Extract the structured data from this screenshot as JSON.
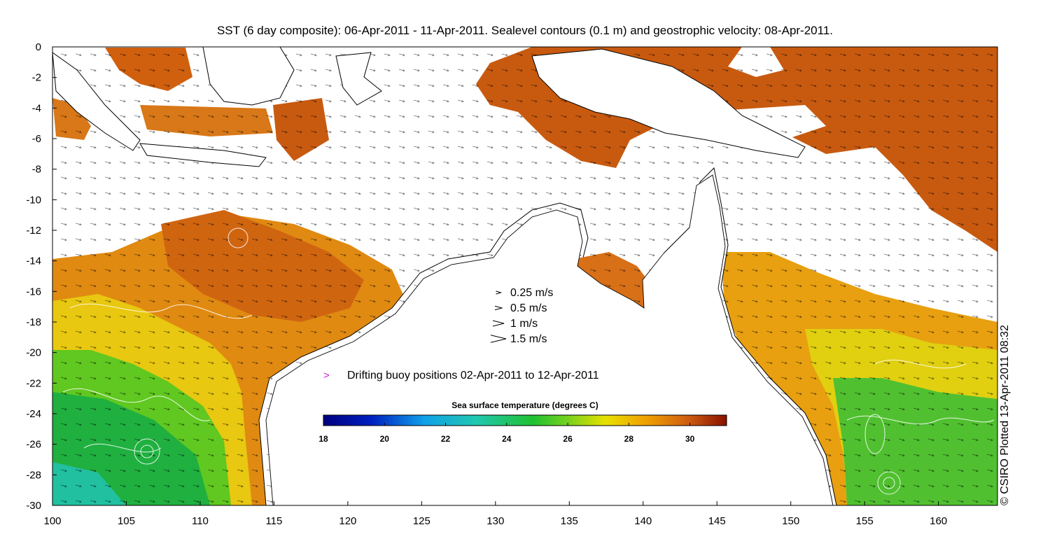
{
  "title": "SST (6 day composite): 06-Apr-2011 - 11-Apr-2011. Sealevel contours (0.1 m) and geostrophic velocity: 08-Apr-2011.",
  "axes": {
    "x_ticks": [
      "100",
      "105",
      "110",
      "115",
      "120",
      "125",
      "130",
      "135",
      "140",
      "145",
      "150",
      "155",
      "160"
    ],
    "y_ticks": [
      "0",
      "-2",
      "-4",
      "-6",
      "-8",
      "-10",
      "-12",
      "-14",
      "-16",
      "-18",
      "-20",
      "-22",
      "-24",
      "-26",
      "-28",
      "-30"
    ],
    "xlim": [
      100,
      164
    ],
    "ylim": [
      -30,
      0
    ]
  },
  "velocity_legend": [
    {
      "label": "0.25 m/s",
      "speed": 0.25
    },
    {
      "label": "0.5 m/s",
      "speed": 0.5
    },
    {
      "label": "1 m/s",
      "speed": 1
    },
    {
      "label": "1.5 m/s",
      "speed": 1.5
    }
  ],
  "buoy_legend": {
    "marker": ">",
    "label": "Drifting buoy positions 02-Apr-2011 to 12-Apr-2011",
    "color": "#d020d0"
  },
  "colorbar": {
    "title": "Sea surface temperature (degrees C)",
    "ticks": [
      "18",
      "20",
      "22",
      "24",
      "26",
      "28",
      "30"
    ],
    "range": [
      18,
      31.2
    ]
  },
  "credit": "© CSIRO Plotted 13-Apr-2011 08:32",
  "colors": {
    "sst_warm": "#c8500a",
    "sst_mid": "#e89a10",
    "sst_cool": "#20c020",
    "land": "#ffffff",
    "coast": "#000000"
  }
}
